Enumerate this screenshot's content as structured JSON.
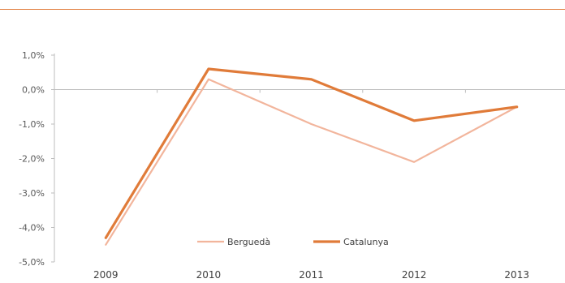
{
  "header": {
    "title": "",
    "rule_color": "#e07b39"
  },
  "chart_data": {
    "type": "line",
    "categories": [
      "2009",
      "2010",
      "2011",
      "2012",
      "2013"
    ],
    "y_ticks": [
      "1,0%",
      "0,0%",
      "-1,0%",
      "-2,0%",
      "-3,0%",
      "-4,0%",
      "-5,0%"
    ],
    "ylim": [
      -5.0,
      1.0
    ],
    "grid": false,
    "legend_position": "bottom-center",
    "series": [
      {
        "name": "Berguedà",
        "values": [
          -4.5,
          0.3,
          -1.0,
          -2.1,
          -0.5
        ],
        "color": "#f2b59c"
      },
      {
        "name": "Catalunya",
        "values": [
          -4.3,
          0.6,
          0.3,
          -0.9,
          -0.5
        ],
        "color": "#e07b39"
      }
    ]
  }
}
